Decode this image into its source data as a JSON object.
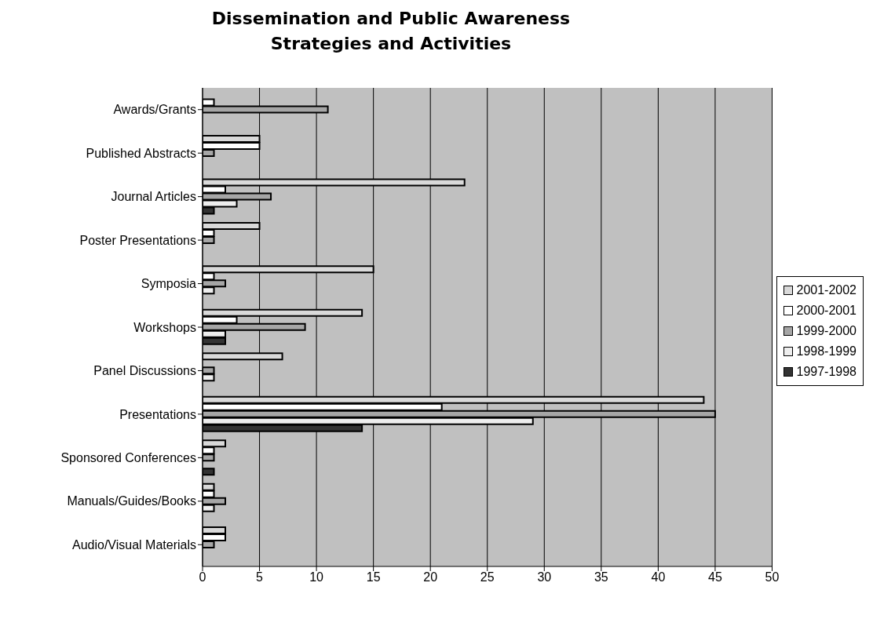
{
  "chart_data": {
    "type": "bar",
    "orientation": "horizontal",
    "title": "Dissemination and Public Awareness Strategies and Activities",
    "categories": [
      "Awards/Grants",
      "Published Abstracts",
      "Journal Articles",
      "Poster Presentations",
      "Symposia",
      "Workshops",
      "Panel Discussions",
      "Presentations",
      "Sponsored Conferences",
      "Manuals/Guides/Books",
      "Audio/Visual Materials"
    ],
    "series": [
      {
        "name": "2001-2002",
        "color": "#d9d9d9",
        "values": [
          null,
          5,
          23,
          5,
          15,
          14,
          7,
          44,
          2,
          1,
          2
        ]
      },
      {
        "name": "2000-2001",
        "color": "#ffffff",
        "values": [
          1,
          5,
          2,
          1,
          1,
          3,
          null,
          21,
          1,
          1,
          2
        ]
      },
      {
        "name": "1999-2000",
        "color": "#a6a6a6",
        "values": [
          11,
          1,
          6,
          1,
          2,
          9,
          1,
          45,
          1,
          2,
          1
        ]
      },
      {
        "name": "1998-1999",
        "color": "#eeeeee",
        "values": [
          null,
          null,
          3,
          null,
          1,
          2,
          1,
          29,
          null,
          1,
          null
        ]
      },
      {
        "name": "1997-1998",
        "color": "#333333",
        "values": [
          null,
          null,
          1,
          null,
          null,
          2,
          null,
          14,
          1,
          null,
          null
        ]
      }
    ],
    "xlim": [
      0,
      50
    ],
    "xticks": [
      0,
      5,
      10,
      15,
      20,
      25,
      30,
      35,
      40,
      45,
      50
    ],
    "grid": "x",
    "legend": "right"
  }
}
